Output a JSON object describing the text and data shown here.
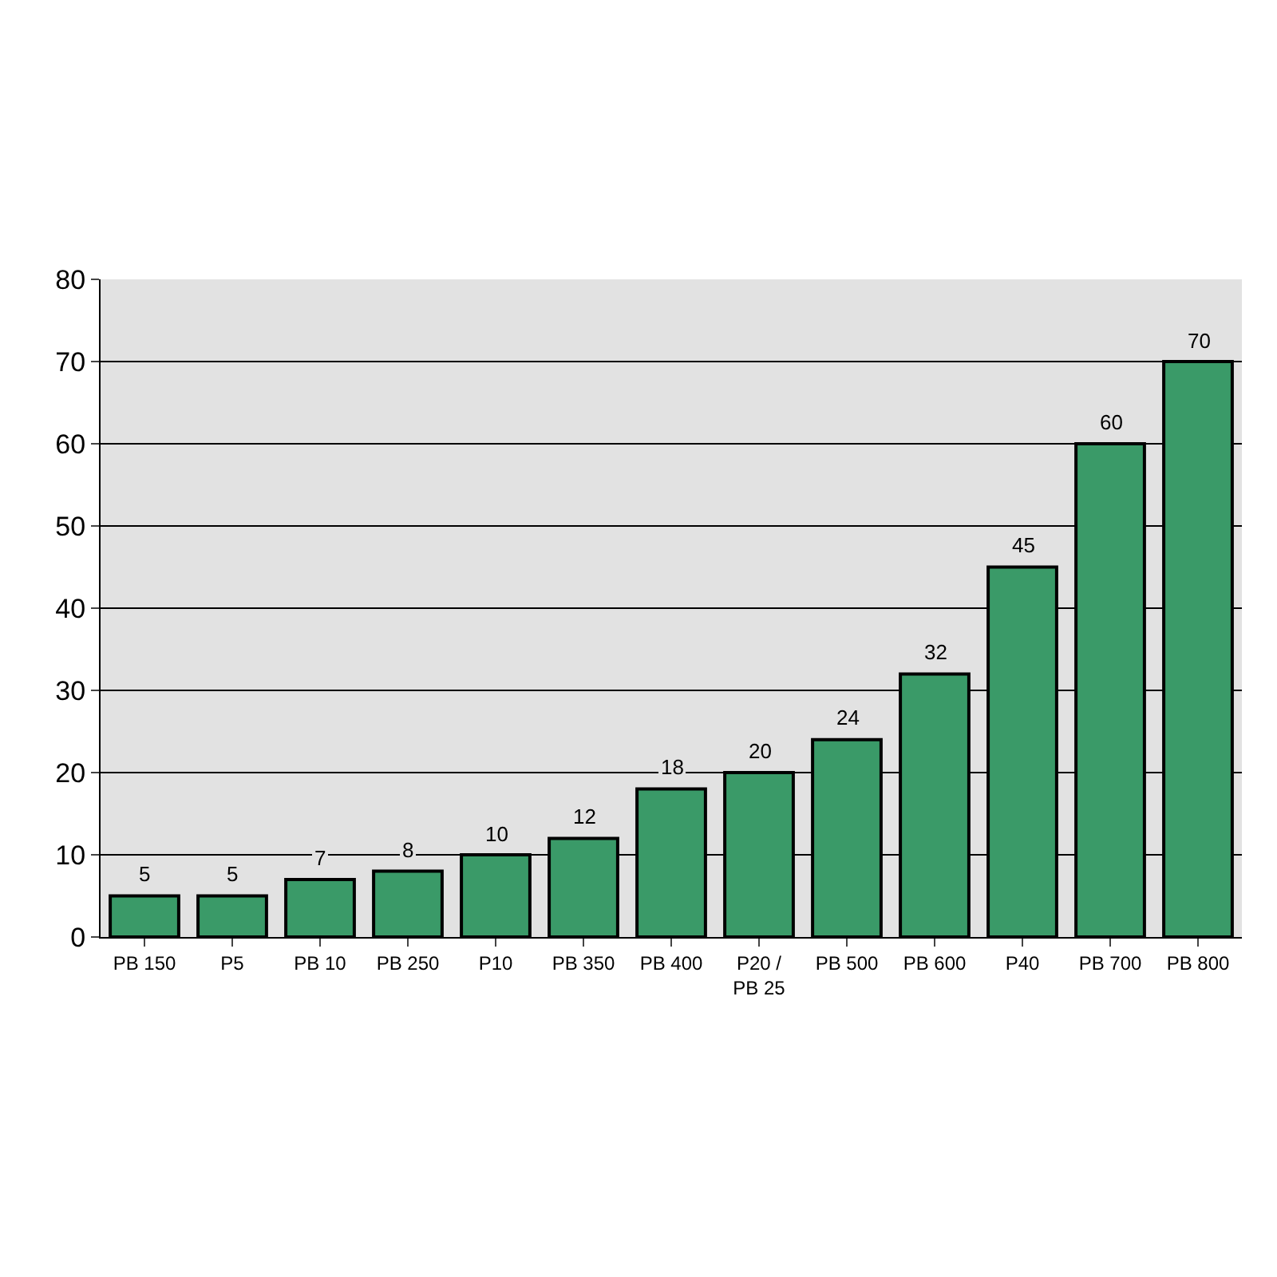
{
  "chart_data": {
    "type": "bar",
    "categories": [
      "PB 150",
      "P5",
      "PB 10",
      "PB 250",
      "P10",
      "PB 350",
      "PB 400",
      "P20 / PB 25",
      "PB 500",
      "PB 600",
      "P40",
      "PB 700",
      "PB 800"
    ],
    "values": [
      5,
      5,
      7,
      8,
      10,
      12,
      18,
      20,
      24,
      32,
      45,
      60,
      70
    ],
    "color": "#3a9a68",
    "ylim": [
      0,
      80
    ],
    "yticks": [
      0,
      10,
      20,
      30,
      40,
      50,
      60,
      70,
      80
    ],
    "grid": "y",
    "data_labels": true,
    "legend": false
  }
}
